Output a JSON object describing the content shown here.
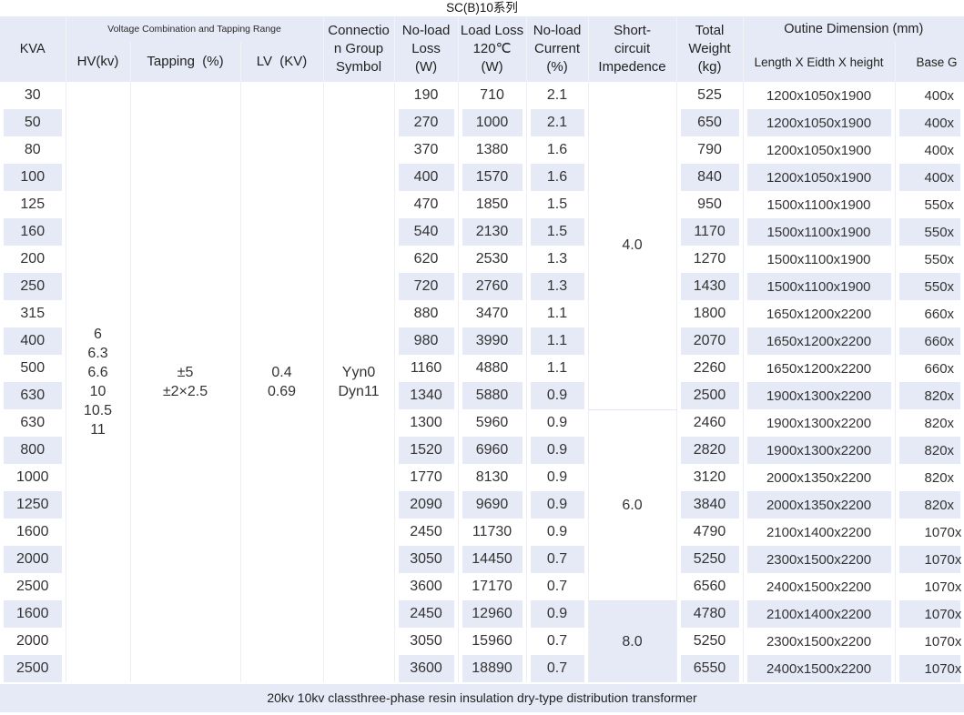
{
  "title": "SC(B)10系列",
  "footer_note": "20kv 10kv classthree-phase resin insulation dry-type distribution transformer",
  "colors": {
    "stripe_bg": "#e5eaf6",
    "header_bg": "#e5eaf6",
    "text": "#333333"
  },
  "table": {
    "headers": {
      "kva": "KVA",
      "voltage_group": "Voltage Combination and Tapping Range",
      "hv": "HV(kv)",
      "tapping": "Tapping  (%)",
      "lv": "LV  (KV)",
      "connection": "Connectio\nn Group\nSymbol",
      "no_load_loss": "No-load\nLoss\n(W)",
      "load_loss": "Load Loss\n120℃\n(W)",
      "no_load_current": "No-load\nCurrent\n(%)",
      "impedance": "Short-\ncircuit\nImpedence",
      "total_weight": "Total\nWeight\n(kg)",
      "outline_group": "Outine Dimension (mm)",
      "dimension": "Length X Eidth X height",
      "base": "Base G"
    },
    "merged": {
      "hv": "6\n6.3\n6.6\n10\n10.5\n11",
      "tapping": "±5\n±2×2.5",
      "lv": "0.4\n0.69",
      "connection": "Yyn0\nDyn11"
    },
    "impedance_groups": [
      {
        "value": "4.0",
        "span": 12
      },
      {
        "value": "6.0",
        "span": 7
      },
      {
        "value": "8.0",
        "span": 3
      }
    ],
    "rows": [
      {
        "kva": "30",
        "no_load_loss": "190",
        "load_loss": "710",
        "no_load_current": "2.1",
        "total_weight": "525",
        "dimension": "1200x1050x1900",
        "base": "400x"
      },
      {
        "kva": "50",
        "no_load_loss": "270",
        "load_loss": "1000",
        "no_load_current": "2.1",
        "total_weight": "650",
        "dimension": "1200x1050x1900",
        "base": "400x"
      },
      {
        "kva": "80",
        "no_load_loss": "370",
        "load_loss": "1380",
        "no_load_current": "1.6",
        "total_weight": "790",
        "dimension": "1200x1050x1900",
        "base": "400x"
      },
      {
        "kva": "100",
        "no_load_loss": "400",
        "load_loss": "1570",
        "no_load_current": "1.6",
        "total_weight": "840",
        "dimension": "1200x1050x1900",
        "base": "400x"
      },
      {
        "kva": "125",
        "no_load_loss": "470",
        "load_loss": "1850",
        "no_load_current": "1.5",
        "total_weight": "950",
        "dimension": "1500x1100x1900",
        "base": "550x"
      },
      {
        "kva": "160",
        "no_load_loss": "540",
        "load_loss": "2130",
        "no_load_current": "1.5",
        "total_weight": "1170",
        "dimension": "1500x1100x1900",
        "base": "550x"
      },
      {
        "kva": "200",
        "no_load_loss": "620",
        "load_loss": "2530",
        "no_load_current": "1.3",
        "total_weight": "1270",
        "dimension": "1500x1100x1900",
        "base": "550x"
      },
      {
        "kva": "250",
        "no_load_loss": "720",
        "load_loss": "2760",
        "no_load_current": "1.3",
        "total_weight": "1430",
        "dimension": "1500x1100x1900",
        "base": "550x"
      },
      {
        "kva": "315",
        "no_load_loss": "880",
        "load_loss": "3470",
        "no_load_current": "1.1",
        "total_weight": "1800",
        "dimension": "1650x1200x2200",
        "base": "660x"
      },
      {
        "kva": "400",
        "no_load_loss": "980",
        "load_loss": "3990",
        "no_load_current": "1.1",
        "total_weight": "2070",
        "dimension": "1650x1200x2200",
        "base": "660x"
      },
      {
        "kva": "500",
        "no_load_loss": "1160",
        "load_loss": "4880",
        "no_load_current": "1.1",
        "total_weight": "2260",
        "dimension": "1650x1200x2200",
        "base": "660x"
      },
      {
        "kva": "630",
        "no_load_loss": "1340",
        "load_loss": "5880",
        "no_load_current": "0.9",
        "total_weight": "2500",
        "dimension": "1900x1300x2200",
        "base": "820x"
      },
      {
        "kva": "630",
        "no_load_loss": "1300",
        "load_loss": "5960",
        "no_load_current": "0.9",
        "total_weight": "2460",
        "dimension": "1900x1300x2200",
        "base": "820x"
      },
      {
        "kva": "800",
        "no_load_loss": "1520",
        "load_loss": "6960",
        "no_load_current": "0.9",
        "total_weight": "2820",
        "dimension": "1900x1300x2200",
        "base": "820x"
      },
      {
        "kva": "1000",
        "no_load_loss": "1770",
        "load_loss": "8130",
        "no_load_current": "0.9",
        "total_weight": "3120",
        "dimension": "2000x1350x2200",
        "base": "820x"
      },
      {
        "kva": "1250",
        "no_load_loss": "2090",
        "load_loss": "9690",
        "no_load_current": "0.9",
        "total_weight": "3840",
        "dimension": "2000x1350x2200",
        "base": "820x"
      },
      {
        "kva": "1600",
        "no_load_loss": "2450",
        "load_loss": "11730",
        "no_load_current": "0.9",
        "total_weight": "4790",
        "dimension": "2100x1400x2200",
        "base": "1070x"
      },
      {
        "kva": "2000",
        "no_load_loss": "3050",
        "load_loss": "14450",
        "no_load_current": "0.7",
        "total_weight": "5250",
        "dimension": "2300x1500x2200",
        "base": "1070x"
      },
      {
        "kva": "2500",
        "no_load_loss": "3600",
        "load_loss": "17170",
        "no_load_current": "0.7",
        "total_weight": "6560",
        "dimension": "2400x1500x2200",
        "base": "1070x"
      },
      {
        "kva": "1600",
        "no_load_loss": "2450",
        "load_loss": "12960",
        "no_load_current": "0.9",
        "total_weight": "4780",
        "dimension": "2100x1400x2200",
        "base": "1070x"
      },
      {
        "kva": "2000",
        "no_load_loss": "3050",
        "load_loss": "15960",
        "no_load_current": "0.7",
        "total_weight": "5250",
        "dimension": "2300x1500x2200",
        "base": "1070x"
      },
      {
        "kva": "2500",
        "no_load_loss": "3600",
        "load_loss": "18890",
        "no_load_current": "0.7",
        "total_weight": "6550",
        "dimension": "2400x1500x2200",
        "base": "1070x"
      }
    ]
  }
}
